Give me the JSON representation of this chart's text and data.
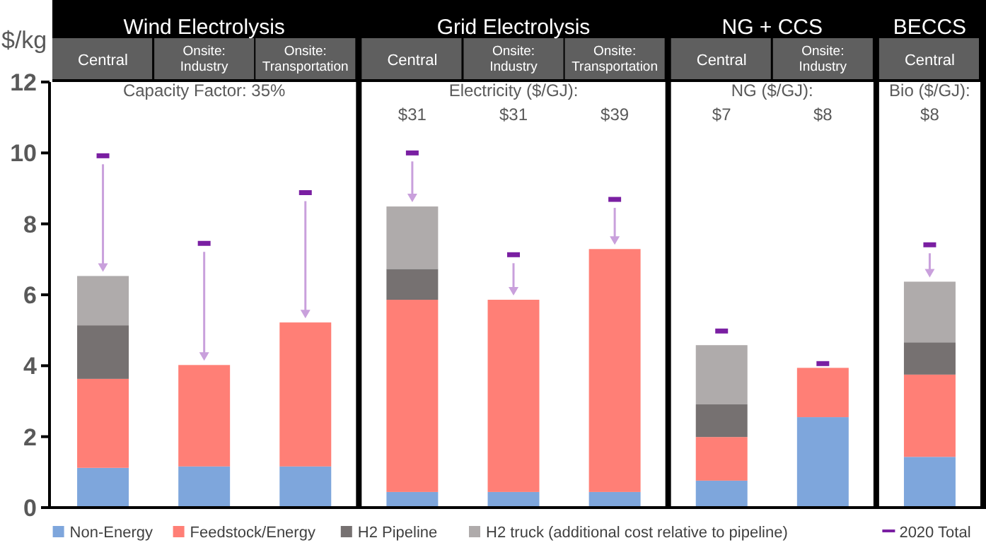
{
  "chart_data": {
    "type": "bar",
    "stacked": true,
    "ylabel": "$/kg",
    "ylim": [
      0,
      12
    ],
    "yticks": [
      0,
      2,
      4,
      6,
      8,
      10,
      12
    ],
    "legend": "bottom",
    "grid": false,
    "categories": [
      "Central",
      "Onsite: Industry",
      "Onsite: Transportation",
      "Central",
      "Onsite: Industry",
      "Onsite: Transportation",
      "Central",
      "Onsite: Industry",
      "Central"
    ],
    "series": [
      {
        "name": "Non-Energy",
        "color": "#7ea6dc",
        "values": [
          1.12,
          1.16,
          1.16,
          0.44,
          0.44,
          0.44,
          0.76,
          2.55,
          1.43
        ]
      },
      {
        "name": "Feedstock/Energy",
        "color": "#ff7f76",
        "values": [
          2.51,
          2.86,
          4.06,
          5.42,
          5.42,
          6.85,
          1.23,
          1.39,
          2.32
        ]
      },
      {
        "name": "H2 Pipeline",
        "color": "#767171",
        "values": [
          1.51,
          null,
          null,
          0.87,
          null,
          null,
          0.92,
          null,
          0.91
        ]
      },
      {
        "name": "H2 truck (additional cost relative to pipeline)",
        "color": "#afabab",
        "values": [
          1.39,
          null,
          null,
          1.76,
          null,
          null,
          1.67,
          null,
          1.71
        ]
      },
      {
        "name": "2020 Total",
        "type": "scatter",
        "color": "#7a1fa2",
        "values": [
          9.92,
          7.45,
          8.88,
          10.0,
          7.13,
          8.69,
          4.98,
          4.06,
          7.41
        ]
      }
    ],
    "annotations": [
      "Wind Electrolysis",
      "Grid Electrolysis",
      "NG + CCS",
      "BECCS",
      "Capacity Factor: 35%",
      "Electricity ($/GJ):",
      "$31",
      "$31",
      "$39",
      "NG ($/GJ):",
      "$7",
      "$8",
      "Bio ($/GJ):",
      "$8"
    ]
  }
}
